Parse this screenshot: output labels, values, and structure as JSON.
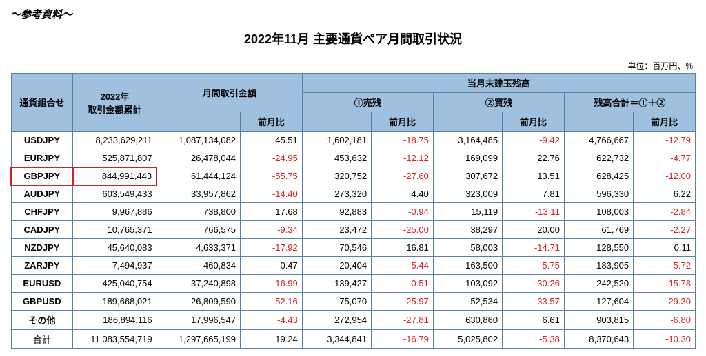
{
  "ref_note": "～参考資料～",
  "title": "2022年11月 主要通貨ペア月間取引状況",
  "unit": "単位：百万円、%",
  "headers": {
    "pair": "通貨組合せ",
    "cumulative": "2022年\n取引金額累計",
    "monthly_amount": "月間取引金額",
    "mom": "前月比",
    "eom_balance": "当月末建玉残高",
    "sell_balance": "①売残",
    "buy_balance": "②買残",
    "total_balance": "残高合計＝①＋②"
  },
  "highlight_row_index": 2,
  "rows": [
    {
      "pair": "USDJPY",
      "cum": "8,233,629,211",
      "amt": "1,087,134,082",
      "amt_mom": "45.51",
      "sell": "1,602,181",
      "sell_mom": "-18.75",
      "buy": "3,164,485",
      "buy_mom": "-9.42",
      "tot": "4,766,667",
      "tot_mom": "-12.79"
    },
    {
      "pair": "EURJPY",
      "cum": "525,871,807",
      "amt": "26,478,044",
      "amt_mom": "-24.95",
      "sell": "453,632",
      "sell_mom": "-12.12",
      "buy": "169,099",
      "buy_mom": "22.76",
      "tot": "622,732",
      "tot_mom": "-4.77"
    },
    {
      "pair": "GBPJPY",
      "cum": "844,991,443",
      "amt": "61,444,124",
      "amt_mom": "-55.75",
      "sell": "320,752",
      "sell_mom": "-27.60",
      "buy": "307,672",
      "buy_mom": "13.51",
      "tot": "628,425",
      "tot_mom": "-12.00"
    },
    {
      "pair": "AUDJPY",
      "cum": "603,549,433",
      "amt": "33,957,862",
      "amt_mom": "-14.40",
      "sell": "273,320",
      "sell_mom": "4.40",
      "buy": "323,009",
      "buy_mom": "7.81",
      "tot": "596,330",
      "tot_mom": "6.22"
    },
    {
      "pair": "CHFJPY",
      "cum": "9,967,886",
      "amt": "738,800",
      "amt_mom": "17.68",
      "sell": "92,883",
      "sell_mom": "-0.94",
      "buy": "15,119",
      "buy_mom": "-13.11",
      "tot": "108,003",
      "tot_mom": "-2.84"
    },
    {
      "pair": "CADJPY",
      "cum": "10,765,371",
      "amt": "766,575",
      "amt_mom": "-9.34",
      "sell": "23,472",
      "sell_mom": "-25.00",
      "buy": "38,297",
      "buy_mom": "20.00",
      "tot": "61,769",
      "tot_mom": "-2.27"
    },
    {
      "pair": "NZDJPY",
      "cum": "45,640,083",
      "amt": "4,633,371",
      "amt_mom": "-17.92",
      "sell": "70,546",
      "sell_mom": "16.81",
      "buy": "58,003",
      "buy_mom": "-14.71",
      "tot": "128,550",
      "tot_mom": "0.11"
    },
    {
      "pair": "ZARJPY",
      "cum": "7,494,937",
      "amt": "460,834",
      "amt_mom": "0.47",
      "sell": "20,404",
      "sell_mom": "-5.44",
      "buy": "163,500",
      "buy_mom": "-5.75",
      "tot": "183,905",
      "tot_mom": "-5.72"
    },
    {
      "pair": "EURUSD",
      "cum": "425,040,754",
      "amt": "37,240,898",
      "amt_mom": "-16.99",
      "sell": "139,427",
      "sell_mom": "-0.51",
      "buy": "103,092",
      "buy_mom": "-30.26",
      "tot": "242,520",
      "tot_mom": "-15.78"
    },
    {
      "pair": "GBPUSD",
      "cum": "189,668,021",
      "amt": "26,809,590",
      "amt_mom": "-52.16",
      "sell": "75,070",
      "sell_mom": "-25.97",
      "buy": "52,534",
      "buy_mom": "-33.57",
      "tot": "127,604",
      "tot_mom": "-29.30"
    },
    {
      "pair": "その他",
      "cum": "186,894,116",
      "amt": "17,996,547",
      "amt_mom": "-4.43",
      "sell": "272,954",
      "sell_mom": "-27.81",
      "buy": "630,860",
      "buy_mom": "6.61",
      "tot": "903,815",
      "tot_mom": "-6.80"
    }
  ],
  "total": {
    "pair": "合計",
    "cum": "11,083,554,719",
    "amt": "1,297,665,199",
    "amt_mom": "19.24",
    "sell": "3,344,841",
    "sell_mom": "-16.79",
    "buy": "5,025,802",
    "buy_mom": "-5.38",
    "tot": "8,370,643",
    "tot_mom": "-10.30"
  }
}
